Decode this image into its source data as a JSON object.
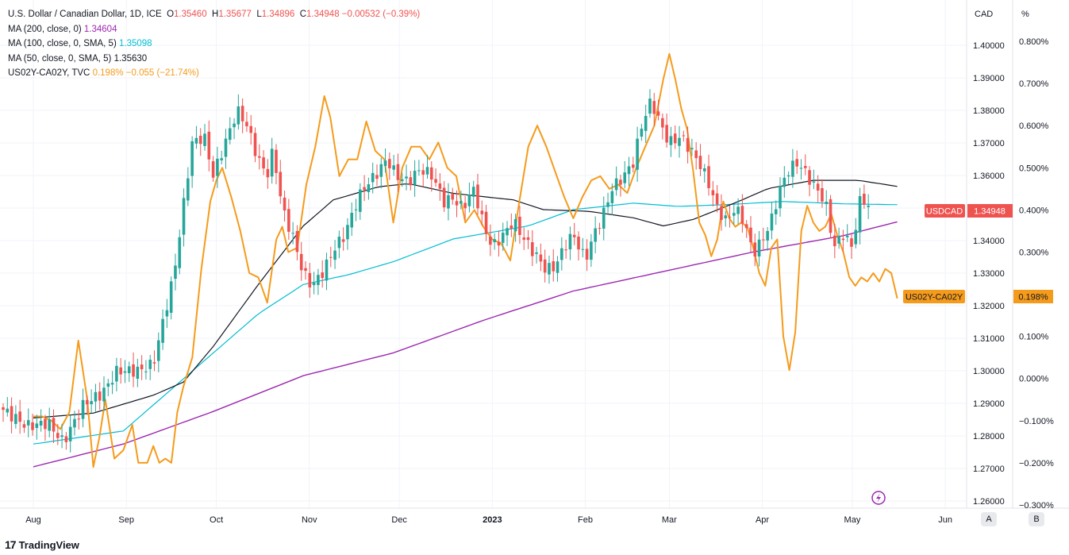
{
  "legend": {
    "main": {
      "symbol": "U.S. Dollar / Canadian Dollar, 1D, ICE",
      "o_label": "O",
      "o": "1.35460",
      "h_label": "H",
      "h": "1.35677",
      "l_label": "L",
      "l": "1.34896",
      "c_label": "C",
      "c": "1.34948",
      "change": "−0.00532 (−0.39%)"
    },
    "ma200": {
      "label": "MA (200, close, 0)",
      "value": "1.34604"
    },
    "ma100": {
      "label": "MA (100, close, 0, SMA, 5)",
      "value": "1.35098"
    },
    "ma50": {
      "label": "MA (50, close, 0, SMA, 5)",
      "value": "1.35630"
    },
    "spread": {
      "label": "US02Y-CA02Y, TVC",
      "value": "0.198%",
      "change": "−0.055 (−21.74%)"
    }
  },
  "colors": {
    "up": "#26a69a",
    "down": "#ef5350",
    "ma200": "#9c27b0",
    "ma100": "#00bcd4",
    "ma50": "#131722",
    "spread": "#f59b1b"
  },
  "chart_data": {
    "type": "candlestick",
    "title": "U.S. Dollar / Canadian Dollar, 1D, ICE",
    "left_axis_unit": "CAD",
    "right_axis_unit": "%",
    "price_ylim": [
      1.255,
      1.41
    ],
    "pct_ylim": [
      -0.3,
      0.85
    ],
    "price_ticks": [
      "1.40000",
      "1.39000",
      "1.38000",
      "1.37000",
      "1.36000",
      "1.35000",
      "1.34000",
      "1.33000",
      "1.32000",
      "1.31000",
      "1.30000",
      "1.29000",
      "1.28000",
      "1.27000",
      "1.26000"
    ],
    "price_tick_values": [
      1.4,
      1.39,
      1.38,
      1.37,
      1.36,
      1.35,
      1.34,
      1.33,
      1.32,
      1.31,
      1.3,
      1.29,
      1.28,
      1.27,
      1.26
    ],
    "pct_ticks": [
      "0.800%",
      "0.700%",
      "0.600%",
      "0.500%",
      "0.400%",
      "0.300%",
      "0.200%",
      "0.100%",
      "0.000%",
      "−0.100%",
      "−0.200%",
      "−0.300%"
    ],
    "pct_tick_values": [
      0.8,
      0.7,
      0.6,
      0.5,
      0.4,
      0.3,
      0.2,
      0.1,
      0.0,
      -0.1,
      -0.2,
      -0.3
    ],
    "x_labels": [
      "Aug",
      "Sep",
      "Oct",
      "Nov",
      "Dec",
      "2023",
      "Feb",
      "Mar",
      "Apr",
      "May",
      "Jun"
    ],
    "x_label_days": [
      0,
      31,
      61,
      92,
      122,
      153,
      184,
      212,
      243,
      273,
      304
    ],
    "last_day": 289,
    "price_badge": {
      "label": "USDCAD",
      "value": "1.34948"
    },
    "spread_badge": {
      "label": "US02Y-CA02Y",
      "value": "0.198%"
    },
    "ma200_points": [
      [
        0,
        1.2705
      ],
      [
        30,
        1.2775
      ],
      [
        60,
        1.2875
      ],
      [
        90,
        1.2985
      ],
      [
        120,
        1.3055
      ],
      [
        150,
        1.3155
      ],
      [
        180,
        1.3245
      ],
      [
        210,
        1.3305
      ],
      [
        240,
        1.3365
      ],
      [
        270,
        1.3415
      ],
      [
        289,
        1.346
      ]
    ],
    "ma100_points": [
      [
        0,
        1.2775
      ],
      [
        30,
        1.2815
      ],
      [
        45,
        1.2935
      ],
      [
        60,
        1.3055
      ],
      [
        75,
        1.3175
      ],
      [
        90,
        1.3265
      ],
      [
        105,
        1.3295
      ],
      [
        120,
        1.3335
      ],
      [
        140,
        1.3405
      ],
      [
        165,
        1.3445
      ],
      [
        180,
        1.3495
      ],
      [
        200,
        1.3515
      ],
      [
        215,
        1.3505
      ],
      [
        230,
        1.351
      ],
      [
        250,
        1.352
      ],
      [
        270,
        1.3513
      ],
      [
        289,
        1.351
      ]
    ],
    "ma50_points": [
      [
        0,
        1.2855
      ],
      [
        20,
        1.287
      ],
      [
        40,
        1.2925
      ],
      [
        50,
        1.2965
      ],
      [
        60,
        1.3075
      ],
      [
        75,
        1.3265
      ],
      [
        90,
        1.3445
      ],
      [
        100,
        1.3525
      ],
      [
        115,
        1.3565
      ],
      [
        125,
        1.3575
      ],
      [
        140,
        1.3545
      ],
      [
        160,
        1.3525
      ],
      [
        170,
        1.3495
      ],
      [
        185,
        1.349
      ],
      [
        200,
        1.347
      ],
      [
        210,
        1.3445
      ],
      [
        220,
        1.3465
      ],
      [
        235,
        1.352
      ],
      [
        245,
        1.356
      ],
      [
        260,
        1.3585
      ],
      [
        275,
        1.3585
      ],
      [
        289,
        1.3565
      ]
    ],
    "spread_points": [
      [
        0,
        -0.09
      ],
      [
        3,
        -0.09
      ],
      [
        6,
        -0.1
      ],
      [
        9,
        -0.12
      ],
      [
        12,
        -0.08
      ],
      [
        15,
        0.09
      ],
      [
        18,
        -0.05
      ],
      [
        20,
        -0.21
      ],
      [
        22,
        -0.14
      ],
      [
        24,
        -0.05
      ],
      [
        27,
        -0.19
      ],
      [
        30,
        -0.17
      ],
      [
        33,
        -0.11
      ],
      [
        35,
        -0.2
      ],
      [
        38,
        -0.2
      ],
      [
        40,
        -0.16
      ],
      [
        42,
        -0.2
      ],
      [
        44,
        -0.19
      ],
      [
        46,
        -0.2
      ],
      [
        48,
        -0.08
      ],
      [
        50,
        -0.02
      ],
      [
        53,
        0.05
      ],
      [
        56,
        0.26
      ],
      [
        59,
        0.42
      ],
      [
        61,
        0.47
      ],
      [
        63,
        0.5
      ],
      [
        66,
        0.43
      ],
      [
        69,
        0.35
      ],
      [
        72,
        0.25
      ],
      [
        75,
        0.24
      ],
      [
        78,
        0.18
      ],
      [
        81,
        0.33
      ],
      [
        83,
        0.36
      ],
      [
        85,
        0.3
      ],
      [
        88,
        0.31
      ],
      [
        91,
        0.46
      ],
      [
        94,
        0.55
      ],
      [
        97,
        0.67
      ],
      [
        99,
        0.62
      ],
      [
        102,
        0.48
      ],
      [
        105,
        0.52
      ],
      [
        108,
        0.52
      ],
      [
        111,
        0.61
      ],
      [
        114,
        0.54
      ],
      [
        117,
        0.52
      ],
      [
        120,
        0.37
      ],
      [
        123,
        0.5
      ],
      [
        126,
        0.55
      ],
      [
        129,
        0.55
      ],
      [
        132,
        0.52
      ],
      [
        135,
        0.56
      ],
      [
        138,
        0.5
      ],
      [
        141,
        0.48
      ],
      [
        144,
        0.37
      ],
      [
        147,
        0.4
      ],
      [
        150,
        0.36
      ],
      [
        153,
        0.33
      ],
      [
        156,
        0.32
      ],
      [
        159,
        0.28
      ],
      [
        162,
        0.42
      ],
      [
        165,
        0.55
      ],
      [
        168,
        0.6
      ],
      [
        171,
        0.55
      ],
      [
        174,
        0.49
      ],
      [
        177,
        0.43
      ],
      [
        180,
        0.38
      ],
      [
        183,
        0.43
      ],
      [
        186,
        0.47
      ],
      [
        189,
        0.48
      ],
      [
        192,
        0.45
      ],
      [
        195,
        0.46
      ],
      [
        198,
        0.44
      ],
      [
        201,
        0.5
      ],
      [
        204,
        0.55
      ],
      [
        207,
        0.6
      ],
      [
        210,
        0.71
      ],
      [
        212,
        0.77
      ],
      [
        214,
        0.71
      ],
      [
        216,
        0.64
      ],
      [
        218,
        0.59
      ],
      [
        220,
        0.49
      ],
      [
        222,
        0.37
      ],
      [
        224,
        0.34
      ],
      [
        226,
        0.29
      ],
      [
        228,
        0.33
      ],
      [
        230,
        0.42
      ],
      [
        232,
        0.38
      ],
      [
        234,
        0.36
      ],
      [
        236,
        0.37
      ],
      [
        238,
        0.36
      ],
      [
        240,
        0.31
      ],
      [
        242,
        0.25
      ],
      [
        244,
        0.22
      ],
      [
        246,
        0.31
      ],
      [
        248,
        0.33
      ],
      [
        250,
        0.1
      ],
      [
        252,
        0.02
      ],
      [
        254,
        0.11
      ],
      [
        256,
        0.35
      ],
      [
        258,
        0.41
      ],
      [
        260,
        0.37
      ],
      [
        262,
        0.35
      ],
      [
        264,
        0.36
      ],
      [
        266,
        0.39
      ],
      [
        268,
        0.34
      ],
      [
        270,
        0.3
      ],
      [
        272,
        0.24
      ],
      [
        274,
        0.22
      ],
      [
        276,
        0.24
      ],
      [
        278,
        0.23
      ],
      [
        280,
        0.25
      ],
      [
        282,
        0.23
      ],
      [
        284,
        0.26
      ],
      [
        286,
        0.25
      ],
      [
        288,
        0.19
      ]
    ]
  }
}
